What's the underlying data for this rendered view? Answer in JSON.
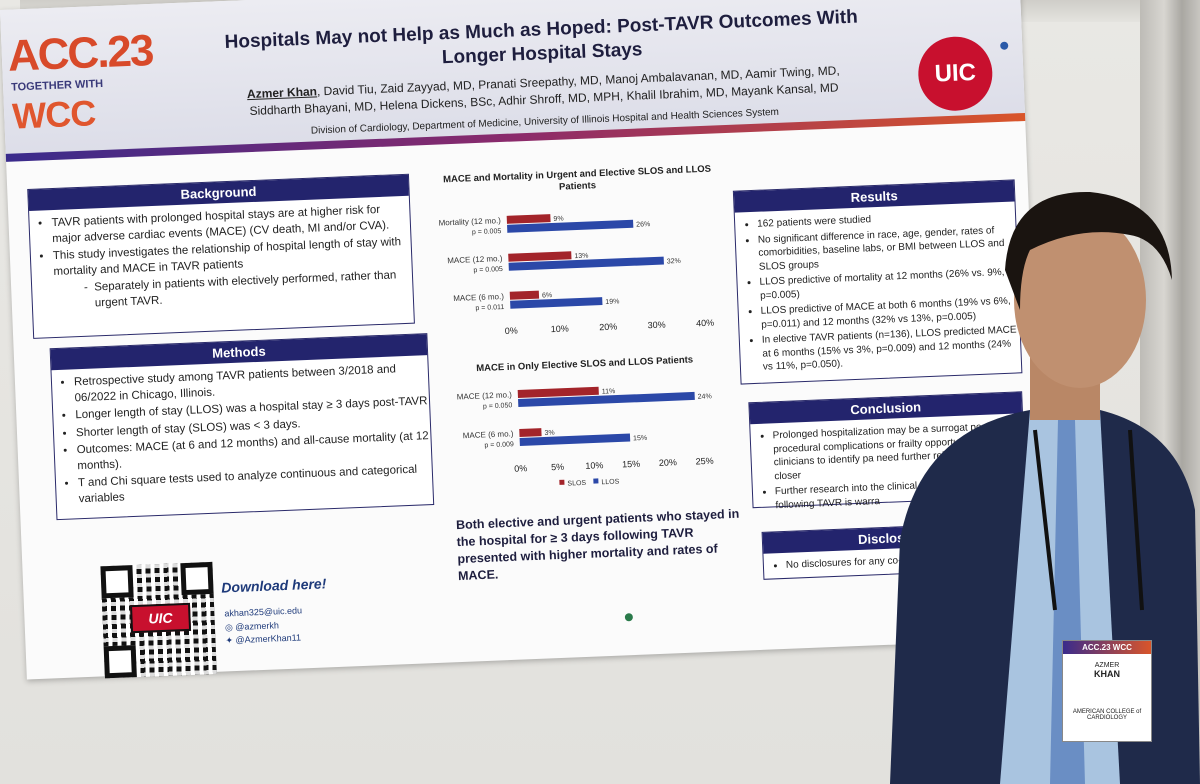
{
  "header": {
    "acc": "ACC.23",
    "acc_tagline": "TOGETHER WITH",
    "wcc": "WCC",
    "title": "Hospitals May not Help as Much as Hoped: Post-TAVR Outcomes With Longer Hospital Stays",
    "lead_author": "Azmer Khan",
    "authors_rest": ", David Tiu, Zaid Zayyad, MD, Pranati Sreepathy, MD, Manoj Ambalavanan, MD, Aamir Twing, MD, Siddharth Bhayani, MD, Helena Dickens, BSc, Adhir Shroff, MD, MPH, Khalil Ibrahim, MD, Mayank Kansal, MD",
    "affiliation": "Division of Cardiology, Department of Medicine, University of Illinois Hospital and Health Sciences System",
    "logo": "UIC"
  },
  "background": {
    "heading": "Background",
    "items": [
      "TAVR patients with prolonged hospital stays are at higher risk for major adverse cardiac events (MACE) (CV death, MI and/or CVA).",
      "This study investigates the relationship of hospital length of stay with mortality and MACE in TAVR patients"
    ],
    "subitem": "Separately in patients with electively performed, rather than urgent TAVR."
  },
  "methods": {
    "heading": "Methods",
    "items": [
      "Retrospective study among TAVR patients between 3/2018 and 06/2022 in Chicago, Illinois.",
      "Longer length of stay (LLOS) was a hospital stay ≥ 3 days post-TAVR",
      "Shorter length of stay (SLOS) was < 3 days.",
      "Outcomes: MACE (at 6 and 12 months) and all-cause mortality (at 12 months).",
      "T and Chi square tests used to analyze continuous and categorical variables"
    ]
  },
  "download": {
    "label": "Download here!",
    "qr_logo": "UIC",
    "email": "akhan325@uic.edu",
    "instagram": "@azmerkh",
    "twitter": "@AzmerKhan11"
  },
  "chart_data": [
    {
      "type": "bar",
      "title": "MACE and Mortality in Urgent and Elective SLOS and LLOS Patients",
      "categories": [
        "Mortality (12 mo.)",
        "MACE (12 mo.)",
        "MACE (6 mo.)"
      ],
      "pvalues": [
        "p = 0.005",
        "p = 0.005",
        "p = 0.011"
      ],
      "series": [
        {
          "name": "SLOS",
          "values": [
            9,
            13,
            6
          ]
        },
        {
          "name": "LLOS",
          "values": [
            26,
            32,
            19
          ]
        }
      ],
      "ticks": [
        "0%",
        "10%",
        "20%",
        "30%",
        "40%"
      ],
      "xlim": [
        0,
        40
      ]
    },
    {
      "type": "bar",
      "title": "MACE in Only Elective SLOS and LLOS Patients",
      "categories": [
        "MACE (12 mo.)",
        "MACE (6 mo.)"
      ],
      "pvalues": [
        "p = 0.050",
        "p = 0.009"
      ],
      "series": [
        {
          "name": "SLOS",
          "values": [
            11,
            3
          ]
        },
        {
          "name": "LLOS",
          "values": [
            24,
            15
          ]
        }
      ],
      "ticks": [
        "0%",
        "5%",
        "10%",
        "15%",
        "20%",
        "25%"
      ],
      "xlim": [
        0,
        25
      ],
      "legend": [
        "SLOS",
        "LLOS"
      ]
    }
  ],
  "colors": {
    "slos": "#a3242a",
    "llos": "#2b48a8",
    "navy": "#23246d"
  },
  "take_home": "Both elective and urgent patients who stayed in the hospital for ≥ 3 days following TAVR presented with higher mortality and rates of MACE.",
  "results": {
    "heading": "Results",
    "items": [
      "162 patients were studied",
      "No significant difference in race, age, gender, rates of comorbidities, baseline labs, or BMI between LLOS and SLOS groups",
      "LLOS predictive of mortality at 12 months (26% vs. 9%, p=0.005)",
      "LLOS predictive of MACE at both 6 months (19% vs 6%, p=0.011) and 12 months (32% vs 13%, p=0.005)",
      "In elective TAVR patients (n=136), LLOS predicted MACE at 6 months (15% vs 3%, p=0.009) and 12 months (24% vs 11%, p=0.050)."
    ]
  },
  "conclusion": {
    "heading": "Conclusion",
    "items": [
      "Prolonged hospitalization may be a surrogat post procedural complications or frailty opportunity for clinicians to identify pa need further rehabilitation and closer",
      "Further research into the clinical signi hospital stay following TAVR is warra"
    ]
  },
  "disclosures": {
    "heading": "Disclosures",
    "items": [
      "No disclosures for any co-authors"
    ]
  },
  "badge": {
    "top": "ACC.23 WCC",
    "first": "AZMER",
    "last": "KHAN",
    "org": "AMERICAN COLLEGE of CARDIOLOGY"
  }
}
